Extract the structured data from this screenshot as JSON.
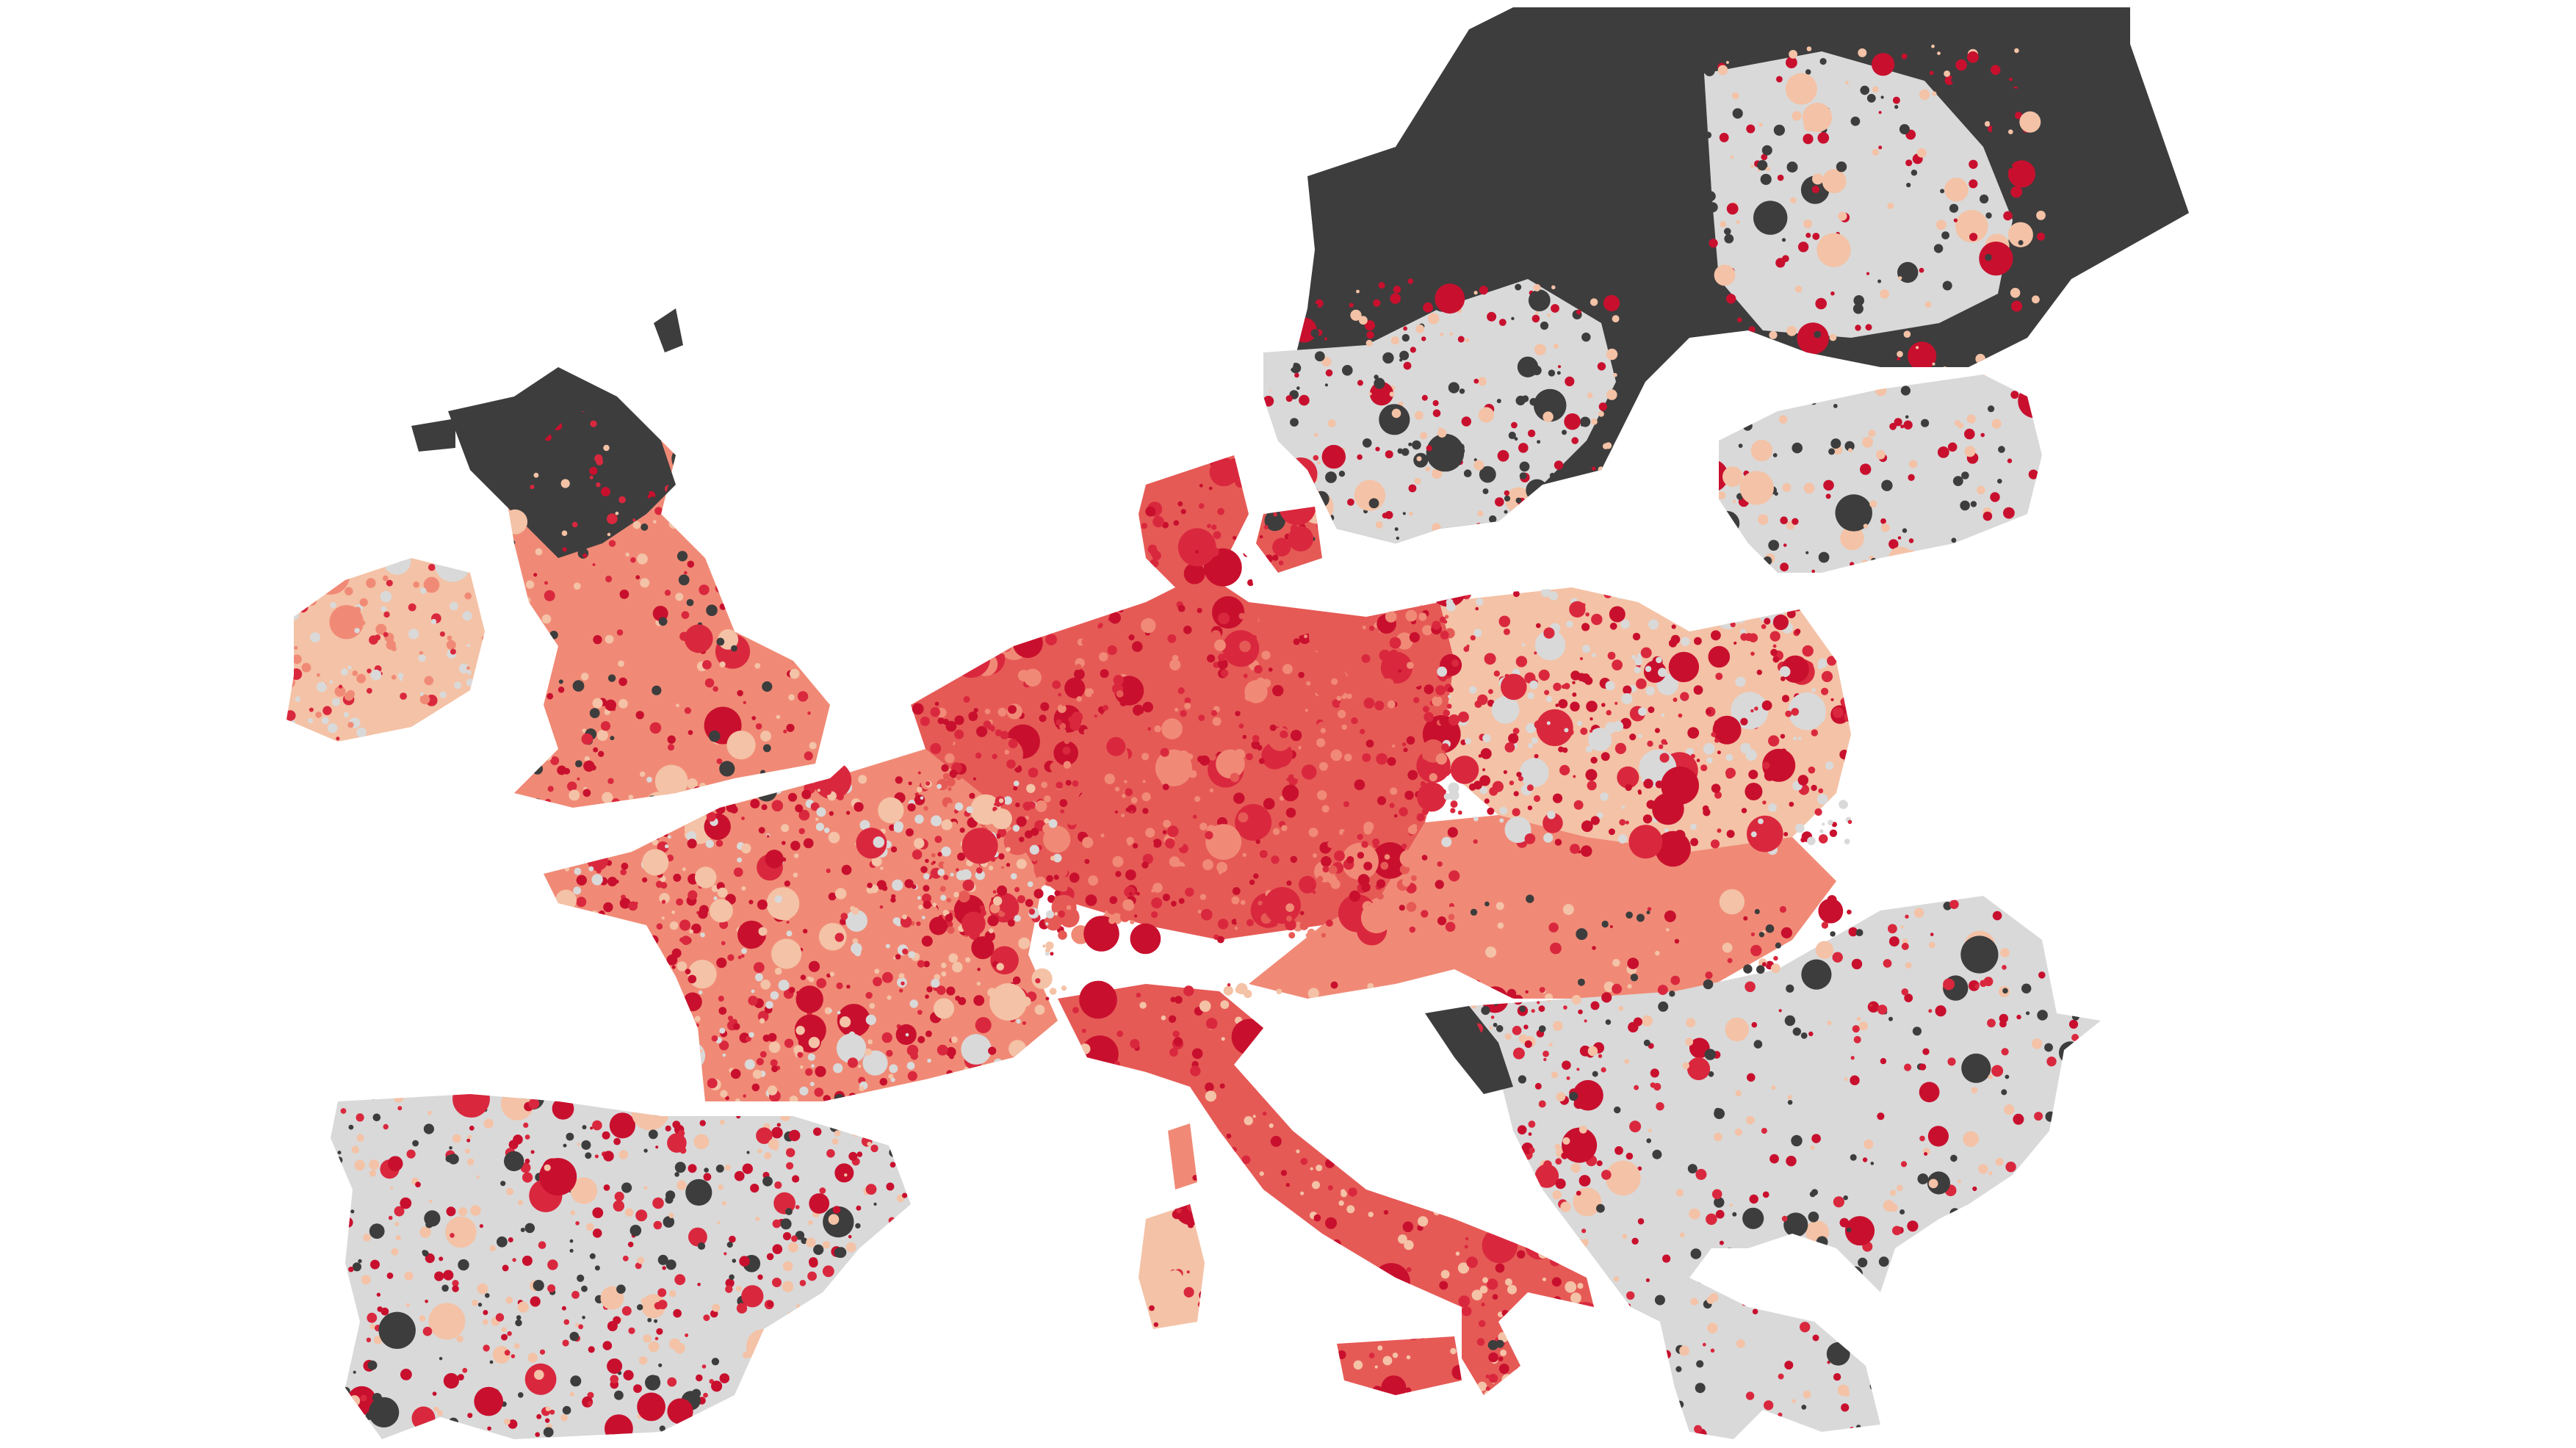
{
  "map": {
    "region": "Europe",
    "background_color": "#ffffff",
    "palette": {
      "sparse_area": "#3d3d3d",
      "no_value": "#d9d9d9",
      "very_low": "#f4c2a6",
      "low": "#f08a76",
      "medium": "#e65a56",
      "high": "#d9283e",
      "very_high": "#c8102e"
    },
    "legend_visible": false,
    "title_visible": false
  }
}
